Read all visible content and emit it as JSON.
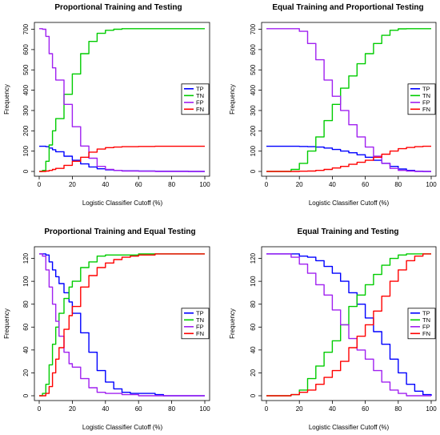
{
  "figure": {
    "xlabel": "Logistic Classifier Cutoff (%)",
    "ylabel": "Frequency",
    "legend_placement": "right",
    "colors": {
      "TP": "#0000ff",
      "TN": "#00cc00",
      "FP": "#a020f0",
      "FN": "#ff0000"
    }
  },
  "chart_data": [
    {
      "type": "line",
      "title": "Proportional Training and Testing",
      "xlabel": "Logistic Classifier Cutoff (%)",
      "ylabel": "Frequency",
      "xlim": [
        0,
        100
      ],
      "ylim": [
        0,
        710
      ],
      "xticks": [
        0,
        20,
        40,
        60,
        80,
        100
      ],
      "yticks": [
        0,
        100,
        200,
        300,
        400,
        500,
        600,
        700
      ],
      "x": [
        0,
        2,
        4,
        6,
        8,
        10,
        15,
        20,
        25,
        30,
        35,
        40,
        45,
        50,
        60,
        70,
        80,
        90,
        100
      ],
      "legend": "right",
      "series": [
        {
          "name": "TP",
          "values": [
            124,
            124,
            122,
            115,
            107,
            97,
            75,
            55,
            37,
            22,
            13,
            8,
            5,
            3,
            2,
            1,
            1,
            0,
            0
          ]
        },
        {
          "name": "TN",
          "values": [
            0,
            5,
            50,
            130,
            200,
            260,
            380,
            480,
            580,
            640,
            680,
            695,
            700,
            703,
            703,
            703,
            703,
            703,
            703
          ]
        },
        {
          "name": "FP",
          "values": [
            703,
            700,
            665,
            580,
            510,
            450,
            330,
            220,
            125,
            65,
            25,
            10,
            5,
            2,
            1,
            0,
            0,
            0,
            0
          ]
        },
        {
          "name": "FN",
          "values": [
            0,
            0,
            2,
            5,
            10,
            15,
            30,
            50,
            70,
            95,
            110,
            117,
            120,
            122,
            123,
            124,
            124,
            124,
            124
          ]
        }
      ]
    },
    {
      "type": "line",
      "title": "Equal Training and Proportional Testing",
      "xlabel": "Logistic Classifier Cutoff (%)",
      "ylabel": "Frequency",
      "xlim": [
        0,
        100
      ],
      "ylim": [
        0,
        710
      ],
      "xticks": [
        0,
        20,
        40,
        60,
        80,
        100
      ],
      "yticks": [
        0,
        100,
        200,
        300,
        400,
        500,
        600,
        700
      ],
      "x": [
        0,
        5,
        10,
        15,
        20,
        25,
        30,
        35,
        40,
        45,
        50,
        55,
        60,
        65,
        70,
        75,
        80,
        85,
        90,
        95,
        100
      ],
      "legend": "right",
      "series": [
        {
          "name": "TP",
          "values": [
            124,
            124,
            124,
            124,
            123,
            122,
            120,
            115,
            108,
            100,
            92,
            82,
            70,
            55,
            40,
            25,
            12,
            5,
            1,
            0,
            0
          ]
        },
        {
          "name": "TN",
          "values": [
            0,
            0,
            0,
            10,
            40,
            100,
            170,
            250,
            330,
            410,
            470,
            530,
            580,
            630,
            670,
            695,
            702,
            703,
            703,
            703,
            703
          ]
        },
        {
          "name": "FP",
          "values": [
            703,
            703,
            703,
            703,
            690,
            630,
            550,
            450,
            370,
            300,
            230,
            170,
            120,
            75,
            40,
            15,
            5,
            2,
            0,
            0,
            0
          ]
        },
        {
          "name": "FN",
          "values": [
            0,
            0,
            0,
            0,
            1,
            2,
            5,
            10,
            17,
            25,
            35,
            45,
            55,
            70,
            85,
            100,
            112,
            118,
            122,
            124,
            124
          ]
        }
      ]
    },
    {
      "type": "line",
      "title": "Proportional Training and Equal Testing",
      "xlabel": "Logistic Classifier Cutoff (%)",
      "ylabel": "Frequency",
      "xlim": [
        0,
        100
      ],
      "ylim": [
        0,
        126
      ],
      "xticks": [
        0,
        20,
        40,
        60,
        80,
        100
      ],
      "yticks": [
        0,
        20,
        40,
        60,
        80,
        100,
        120
      ],
      "x": [
        0,
        2,
        4,
        6,
        8,
        10,
        12,
        15,
        18,
        20,
        25,
        30,
        35,
        40,
        45,
        50,
        55,
        60,
        65,
        70,
        75,
        80,
        90,
        100
      ],
      "legend": "right",
      "series": [
        {
          "name": "TP",
          "values": [
            124,
            124,
            123,
            117,
            110,
            104,
            98,
            90,
            82,
            72,
            55,
            38,
            22,
            12,
            6,
            3,
            2,
            2,
            2,
            1,
            0,
            0,
            0,
            0
          ]
        },
        {
          "name": "TN",
          "values": [
            0,
            2,
            10,
            27,
            45,
            60,
            72,
            85,
            95,
            100,
            112,
            117,
            122,
            123,
            123,
            123,
            123,
            124,
            124,
            124,
            124,
            124,
            124,
            124
          ]
        },
        {
          "name": "FP",
          "values": [
            124,
            122,
            110,
            95,
            80,
            65,
            52,
            38,
            28,
            25,
            15,
            7,
            3,
            2,
            2,
            1,
            1,
            0,
            0,
            0,
            0,
            0,
            0,
            0
          ]
        },
        {
          "name": "FN",
          "values": [
            0,
            0,
            2,
            8,
            20,
            32,
            42,
            58,
            70,
            78,
            95,
            105,
            112,
            116,
            119,
            121,
            122,
            123,
            123,
            124,
            124,
            124,
            124,
            124
          ]
        }
      ]
    },
    {
      "type": "line",
      "title": "Equal Training and Testing",
      "xlabel": "Logistic Classifier Cutoff (%)",
      "ylabel": "Frequency",
      "xlim": [
        0,
        100
      ],
      "ylim": [
        0,
        126
      ],
      "xticks": [
        0,
        20,
        40,
        60,
        80,
        100
      ],
      "yticks": [
        0,
        20,
        40,
        60,
        80,
        100,
        120
      ],
      "x": [
        0,
        5,
        10,
        15,
        20,
        25,
        30,
        35,
        40,
        45,
        50,
        55,
        60,
        65,
        70,
        75,
        80,
        85,
        90,
        95,
        100
      ],
      "legend": "right",
      "series": [
        {
          "name": "TP",
          "values": [
            124,
            124,
            124,
            124,
            122,
            121,
            118,
            113,
            107,
            100,
            90,
            80,
            68,
            56,
            45,
            32,
            20,
            10,
            4,
            1,
            0
          ]
        },
        {
          "name": "TN",
          "values": [
            0,
            0,
            0,
            1,
            5,
            15,
            26,
            38,
            48,
            62,
            78,
            88,
            97,
            106,
            114,
            120,
            123,
            124,
            124,
            124,
            124
          ]
        },
        {
          "name": "FP",
          "values": [
            124,
            124,
            124,
            121,
            115,
            107,
            97,
            88,
            75,
            62,
            50,
            40,
            32,
            22,
            12,
            5,
            2,
            0,
            0,
            0,
            0
          ]
        },
        {
          "name": "FN",
          "values": [
            0,
            0,
            0,
            1,
            3,
            5,
            10,
            16,
            22,
            30,
            42,
            52,
            62,
            74,
            87,
            100,
            110,
            118,
            122,
            124,
            124
          ]
        }
      ]
    }
  ]
}
